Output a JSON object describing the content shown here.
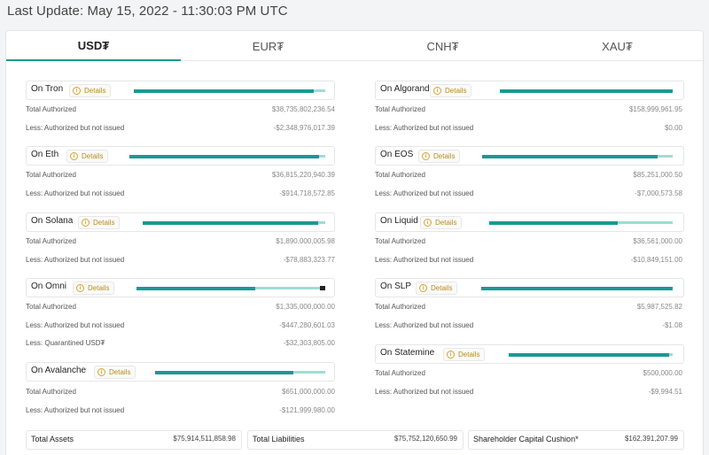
{
  "last_update": "Last Update: May 15, 2022 - 11:30:03 PM UTC",
  "tabs": [
    {
      "label": "USD₮",
      "active": true
    },
    {
      "label": "EUR₮",
      "active": false
    },
    {
      "label": "CNH₮",
      "active": false
    },
    {
      "label": "XAU₮",
      "active": false
    }
  ],
  "details_label": "Details",
  "colors": {
    "accent": "#189a92",
    "accent_light": "#9fdcd5",
    "details": "#b98b1e"
  },
  "chains": {
    "tron": {
      "name": "On Tron",
      "issued_fraction": 0.94,
      "lines": [
        {
          "label": "Total Authorized",
          "value": "$38,735,802,236.54"
        },
        {
          "label": "Less: Authorized but not issued",
          "value": "-$2,348,976,017.39"
        }
      ]
    },
    "eth": {
      "name": "On Eth",
      "issued_fraction": 0.97,
      "lines": [
        {
          "label": "Total Authorized",
          "value": "$36,815,220,940.39"
        },
        {
          "label": "Less: Authorized but not issued",
          "value": "-$914,718,572.85"
        }
      ]
    },
    "solana": {
      "name": "On Solana",
      "issued_fraction": 0.96,
      "lines": [
        {
          "label": "Total Authorized",
          "value": "$1,890,000,005.98"
        },
        {
          "label": "Less: Authorized but not issued",
          "value": "-$78,883,323.77"
        }
      ]
    },
    "omni": {
      "name": "On Omni",
      "issued_fraction": 0.63,
      "quarantined_fraction": 0.03,
      "lines": [
        {
          "label": "Total Authorized",
          "value": "$1,335,000,000.00"
        },
        {
          "label": "Less: Authorized but not issued",
          "value": "-$447,280,601.03"
        },
        {
          "label": "Less: Quarantined USD₮",
          "value": "-$32,303,805.00"
        }
      ]
    },
    "avalanche": {
      "name": "On Avalanche",
      "issued_fraction": 0.81,
      "lines": [
        {
          "label": "Total Authorized",
          "value": "$651,000,000.00"
        },
        {
          "label": "Less: Authorized but not issued",
          "value": "-$121,999,980.00"
        }
      ]
    },
    "algorand": {
      "name": "On Algorand",
      "issued_fraction": 1.0,
      "lines": [
        {
          "label": "Total Authorized",
          "value": "$158,999,961.95"
        },
        {
          "label": "Less: Authorized but not issued",
          "value": "$0.00"
        }
      ]
    },
    "eos": {
      "name": "On EOS",
      "issued_fraction": 0.92,
      "lines": [
        {
          "label": "Total Authorized",
          "value": "$85,251,000.50"
        },
        {
          "label": "Less: Authorized but not issued",
          "value": "-$7,000,573.58"
        }
      ]
    },
    "liquid": {
      "name": "On Liquid",
      "issued_fraction": 0.7,
      "lines": [
        {
          "label": "Total Authorized",
          "value": "$36,561,000.00"
        },
        {
          "label": "Less: Authorized but not issued",
          "value": "-$10,849,151.00"
        }
      ]
    },
    "slp": {
      "name": "On SLP",
      "issued_fraction": 1.0,
      "lines": [
        {
          "label": "Total Authorized",
          "value": "$5,987,525.82"
        },
        {
          "label": "Less: Authorized but not issued",
          "value": "-$1.08"
        }
      ]
    },
    "statemine": {
      "name": "On Statemine",
      "issued_fraction": 0.98,
      "lines": [
        {
          "label": "Total Authorized",
          "value": "$500,000.00"
        },
        {
          "label": "Less: Authorized but not issued",
          "value": "-$9,994.51"
        }
      ]
    }
  },
  "totals": [
    {
      "label": "Total Assets",
      "value": "$75,914,511,858.98"
    },
    {
      "label": "Total Liabilities",
      "value": "$75,752,120,650.99"
    },
    {
      "label": "Shareholder Capital Cushion*",
      "value": "$162,391,207.99"
    }
  ]
}
